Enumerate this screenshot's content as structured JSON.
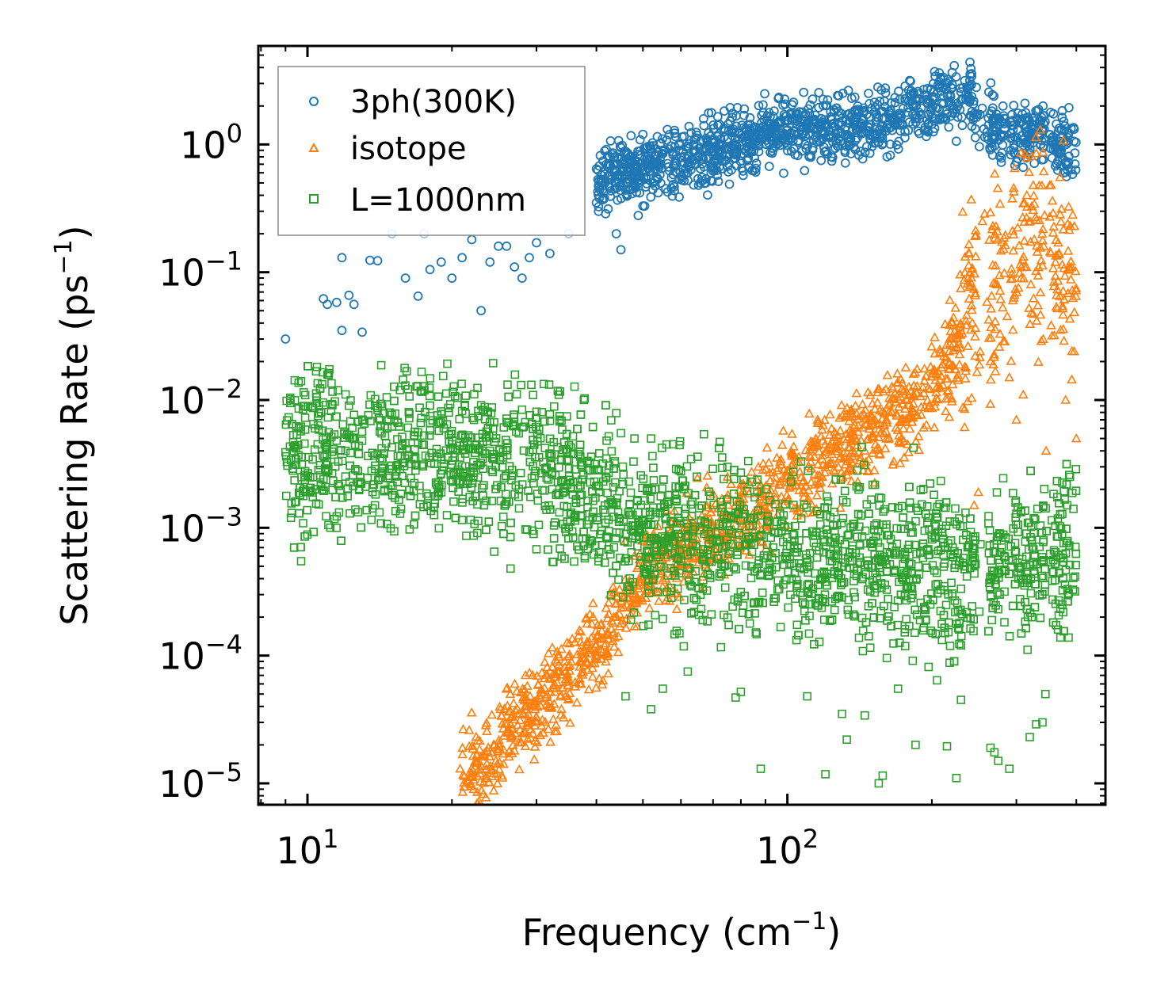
{
  "chart_data": {
    "type": "scatter",
    "title": "",
    "xlabel": "Frequency (cm",
    "xlabel_sup": "−1",
    "xlabel_end": ")",
    "ylabel": "Scattering Rate (ps",
    "ylabel_sup": "−1",
    "ylabel_end": ")",
    "xscale": "log",
    "yscale": "log",
    "xlim": [
      7.9,
      460
    ],
    "ylim": [
      6.8e-06,
      5.9
    ],
    "x_ticks": [
      {
        "value": 10,
        "base": "10",
        "exp": "1"
      },
      {
        "value": 100,
        "base": "10",
        "exp": "2"
      }
    ],
    "y_ticks": [
      {
        "value": 1,
        "base": "10",
        "exp": "0"
      },
      {
        "value": 0.1,
        "base": "10",
        "exp": "−1"
      },
      {
        "value": 0.01,
        "base": "10",
        "exp": "−2"
      },
      {
        "value": 0.001,
        "base": "10",
        "exp": "−3"
      },
      {
        "value": 0.0001,
        "base": "10",
        "exp": "−4"
      },
      {
        "value": 1e-05,
        "base": "10",
        "exp": "−5"
      }
    ],
    "legend_position": "top-left",
    "series": [
      {
        "name": "3ph(300K)",
        "marker": "circle",
        "color": "#1f77b4",
        "trend": [
          [
            40,
            0.55
          ],
          [
            60,
            0.75
          ],
          [
            100,
            1.3
          ],
          [
            150,
            1.4
          ],
          [
            200,
            2.0
          ],
          [
            240,
            2.3
          ],
          [
            260,
            1.6
          ],
          [
            300,
            1.05
          ],
          [
            340,
            1.4
          ],
          [
            400,
            0.8
          ]
        ],
        "points": [
          [
            9.0,
            0.03
          ],
          [
            10.8,
            0.062
          ],
          [
            11.0,
            0.056
          ],
          [
            11.5,
            0.058
          ],
          [
            11.8,
            0.035
          ],
          [
            12.2,
            0.066
          ],
          [
            12.5,
            0.056
          ],
          [
            13.0,
            0.034
          ],
          [
            14.0,
            0.123
          ],
          [
            15.0,
            0.2
          ],
          [
            16.0,
            0.09
          ],
          [
            17.0,
            0.065
          ],
          [
            17.5,
            0.2
          ],
          [
            18.0,
            0.105
          ],
          [
            19.0,
            0.12
          ],
          [
            20.0,
            0.09
          ],
          [
            21.0,
            0.13
          ],
          [
            22.0,
            0.18
          ],
          [
            23.0,
            0.05
          ],
          [
            25.0,
            0.16
          ],
          [
            27.0,
            0.11
          ],
          [
            28.0,
            0.09
          ],
          [
            30.0,
            0.17
          ],
          [
            32.0,
            0.14
          ],
          [
            45.0,
            0.15
          ],
          [
            50.0,
            0.33
          ],
          [
            40.0,
            0.35
          ],
          [
            44.0,
            0.2
          ],
          [
            11.8,
            0.13
          ],
          [
            13.5,
            0.124
          ],
          [
            24.0,
            0.12
          ],
          [
            26.0,
            0.16
          ],
          [
            29.0,
            0.13
          ],
          [
            35.0,
            0.2
          ]
        ]
      },
      {
        "name": "isotope",
        "marker": "triangle",
        "color": "#ff7f0e",
        "trend": [
          [
            21,
            1.3e-05
          ],
          [
            24,
            1.3e-05
          ],
          [
            26,
            3e-05
          ],
          [
            30,
            4e-05
          ],
          [
            40,
            0.00012
          ],
          [
            50,
            0.0004
          ],
          [
            60,
            0.0007
          ],
          [
            80,
            0.0012
          ],
          [
            110,
            0.003
          ],
          [
            150,
            0.006
          ],
          [
            190,
            0.01
          ],
          [
            220,
            0.02
          ],
          [
            240,
            0.06
          ],
          [
            280,
            0.08
          ],
          [
            330,
            0.2
          ],
          [
            400,
            0.08
          ]
        ],
        "points": [
          [
            20.8,
            1.3e-05
          ],
          [
            22.0,
            1.2e-05
          ],
          [
            23.5,
            1.1e-05
          ],
          [
            26.5,
            2.9e-05
          ],
          [
            27.0,
            1.8e-05
          ],
          [
            75.0,
            0.0025
          ],
          [
            87.0,
            0.003
          ],
          [
            120.0,
            0.0045
          ],
          [
            190.0,
            0.0088
          ],
          [
            230.0,
            0.035
          ],
          [
            240.0,
            0.1
          ],
          [
            245.0,
            0.0015
          ],
          [
            250.0,
            0.0019
          ],
          [
            268.0,
            0.23
          ],
          [
            290.0,
            0.015
          ],
          [
            300.0,
            0.007
          ],
          [
            310.0,
            0.011
          ],
          [
            330.0,
            0.85
          ],
          [
            346.0,
            0.004
          ],
          [
            360.0,
            0.032
          ],
          [
            380.0,
            0.01
          ],
          [
            400.0,
            0.005
          ],
          [
            295.0,
            0.06
          ],
          [
            255.0,
            0.25
          ],
          [
            265.0,
            0.02
          ]
        ]
      },
      {
        "name": "L=1000nm",
        "marker": "square",
        "color": "#2ca02c",
        "trend": [
          [
            9,
            0.004
          ],
          [
            20,
            0.004
          ],
          [
            30,
            0.0035
          ],
          [
            40,
            0.0018
          ],
          [
            50,
            0.0009
          ],
          [
            80,
            0.0007
          ],
          [
            120,
            0.0006
          ],
          [
            200,
            0.0005
          ],
          [
            240,
            0.0004
          ],
          [
            260,
            0.0005
          ],
          [
            290,
            0.00055
          ],
          [
            330,
            0.0006
          ],
          [
            400,
            0.0006
          ]
        ],
        "points": [
          [
            9.0,
            0.0039
          ],
          [
            10.5,
            0.0045
          ],
          [
            11.0,
            0.0046
          ],
          [
            11.5,
            0.0048
          ],
          [
            12.0,
            0.004
          ],
          [
            13.0,
            0.0048
          ],
          [
            14.0,
            0.0038
          ],
          [
            15.0,
            0.0062
          ],
          [
            16.0,
            0.0046
          ],
          [
            17.0,
            0.0046
          ],
          [
            20.0,
            0.0045
          ],
          [
            21.0,
            0.0082
          ],
          [
            23.0,
            0.0091
          ],
          [
            24.0,
            0.0067
          ],
          [
            26.0,
            0.0016
          ],
          [
            28.0,
            0.0084
          ],
          [
            30.0,
            0.0081
          ],
          [
            32.0,
            0.0077
          ],
          [
            44.0,
            0.0079
          ],
          [
            48.0,
            0.005
          ],
          [
            52.0,
            0.005
          ],
          [
            67.0,
            0.0054
          ],
          [
            75.0,
            0.003
          ],
          [
            80.0,
            0.0027
          ],
          [
            24.5,
            0.00065
          ],
          [
            26.5,
            0.00048
          ],
          [
            30.0,
            0.00068
          ],
          [
            42.0,
            0.0048
          ],
          [
            45.0,
            0.0055
          ],
          [
            65.0,
            0.0036
          ],
          [
            88.0,
            1.3e-05
          ],
          [
            120.0,
            1.18e-05
          ],
          [
            155.0,
            1e-05
          ],
          [
            158.0,
            1.15e-05
          ],
          [
            225.0,
            1.1e-05
          ],
          [
            265.0,
            1.9e-05
          ],
          [
            275.0,
            1.5e-05
          ],
          [
            290.0,
            1.3e-05
          ],
          [
            133.0,
            2.2e-05
          ],
          [
            185.0,
            2e-05
          ],
          [
            215.0,
            1.95e-05
          ],
          [
            270.0,
            1.75e-05
          ],
          [
            320.0,
            2.3e-05
          ],
          [
            330.0,
            2.9e-05
          ],
          [
            340.0,
            3e-05
          ],
          [
            345.0,
            5e-05
          ],
          [
            52.0,
            3.8e-05
          ],
          [
            55.0,
            5.5e-05
          ],
          [
            46.0,
            4.8e-05
          ],
          [
            62.0,
            7.5e-05
          ],
          [
            78.0,
            4.7e-05
          ],
          [
            80.0,
            5.2e-05
          ],
          [
            110.0,
            4.8e-05
          ],
          [
            130.0,
            3.5e-05
          ],
          [
            145.0,
            3.4e-05
          ],
          [
            170.0,
            5.5e-05
          ],
          [
            205.0,
            6.4e-05
          ],
          [
            230.0,
            4.5e-05
          ]
        ]
      }
    ]
  }
}
